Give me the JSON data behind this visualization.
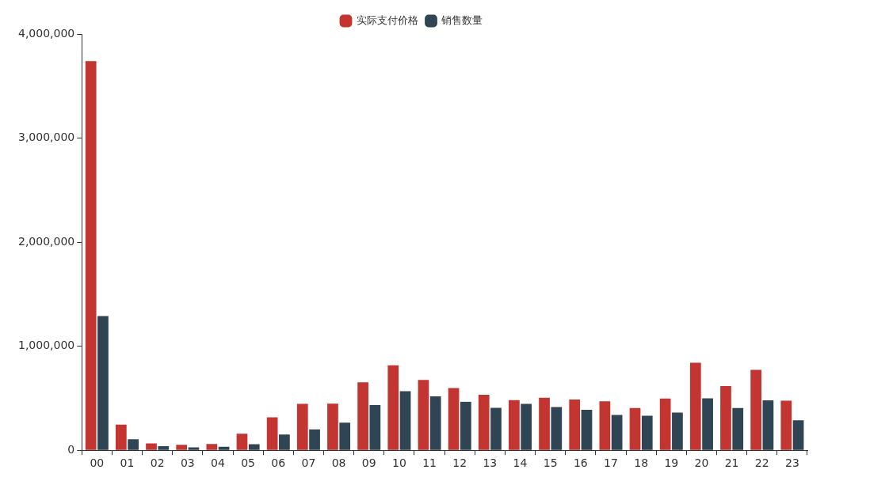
{
  "chart_data": {
    "type": "bar",
    "categories": [
      "00",
      "01",
      "02",
      "03",
      "04",
      "05",
      "06",
      "07",
      "08",
      "09",
      "10",
      "11",
      "12",
      "13",
      "14",
      "15",
      "16",
      "17",
      "18",
      "19",
      "20",
      "21",
      "22",
      "23"
    ],
    "series": [
      {
        "name": "实际支付价格",
        "color": "#c23531",
        "values": [
          3740000,
          247000,
          67000,
          53000,
          61000,
          160000,
          317000,
          446000,
          449000,
          653000,
          817000,
          676000,
          598000,
          533000,
          482000,
          505000,
          488000,
          471000,
          407000,
          497000,
          842000,
          617000,
          774000,
          477000
        ]
      },
      {
        "name": "销售数量",
        "color": "#2f4554",
        "values": [
          1290000,
          106000,
          39000,
          28000,
          34000,
          59000,
          152000,
          202000,
          266000,
          434000,
          567000,
          519000,
          466000,
          409000,
          446000,
          415000,
          390000,
          339000,
          333000,
          362000,
          499000,
          407000,
          480000,
          289000
        ]
      }
    ],
    "ylim": [
      0,
      4000000
    ],
    "yticks": [
      {
        "value": 0,
        "label": "0"
      },
      {
        "value": 1000000,
        "label": "1,000,000"
      },
      {
        "value": 2000000,
        "label": "2,000,000"
      },
      {
        "value": 3000000,
        "label": "3,000,000"
      },
      {
        "value": 4000000,
        "label": "4,000,000"
      }
    ],
    "grid": false,
    "legend": "top"
  }
}
